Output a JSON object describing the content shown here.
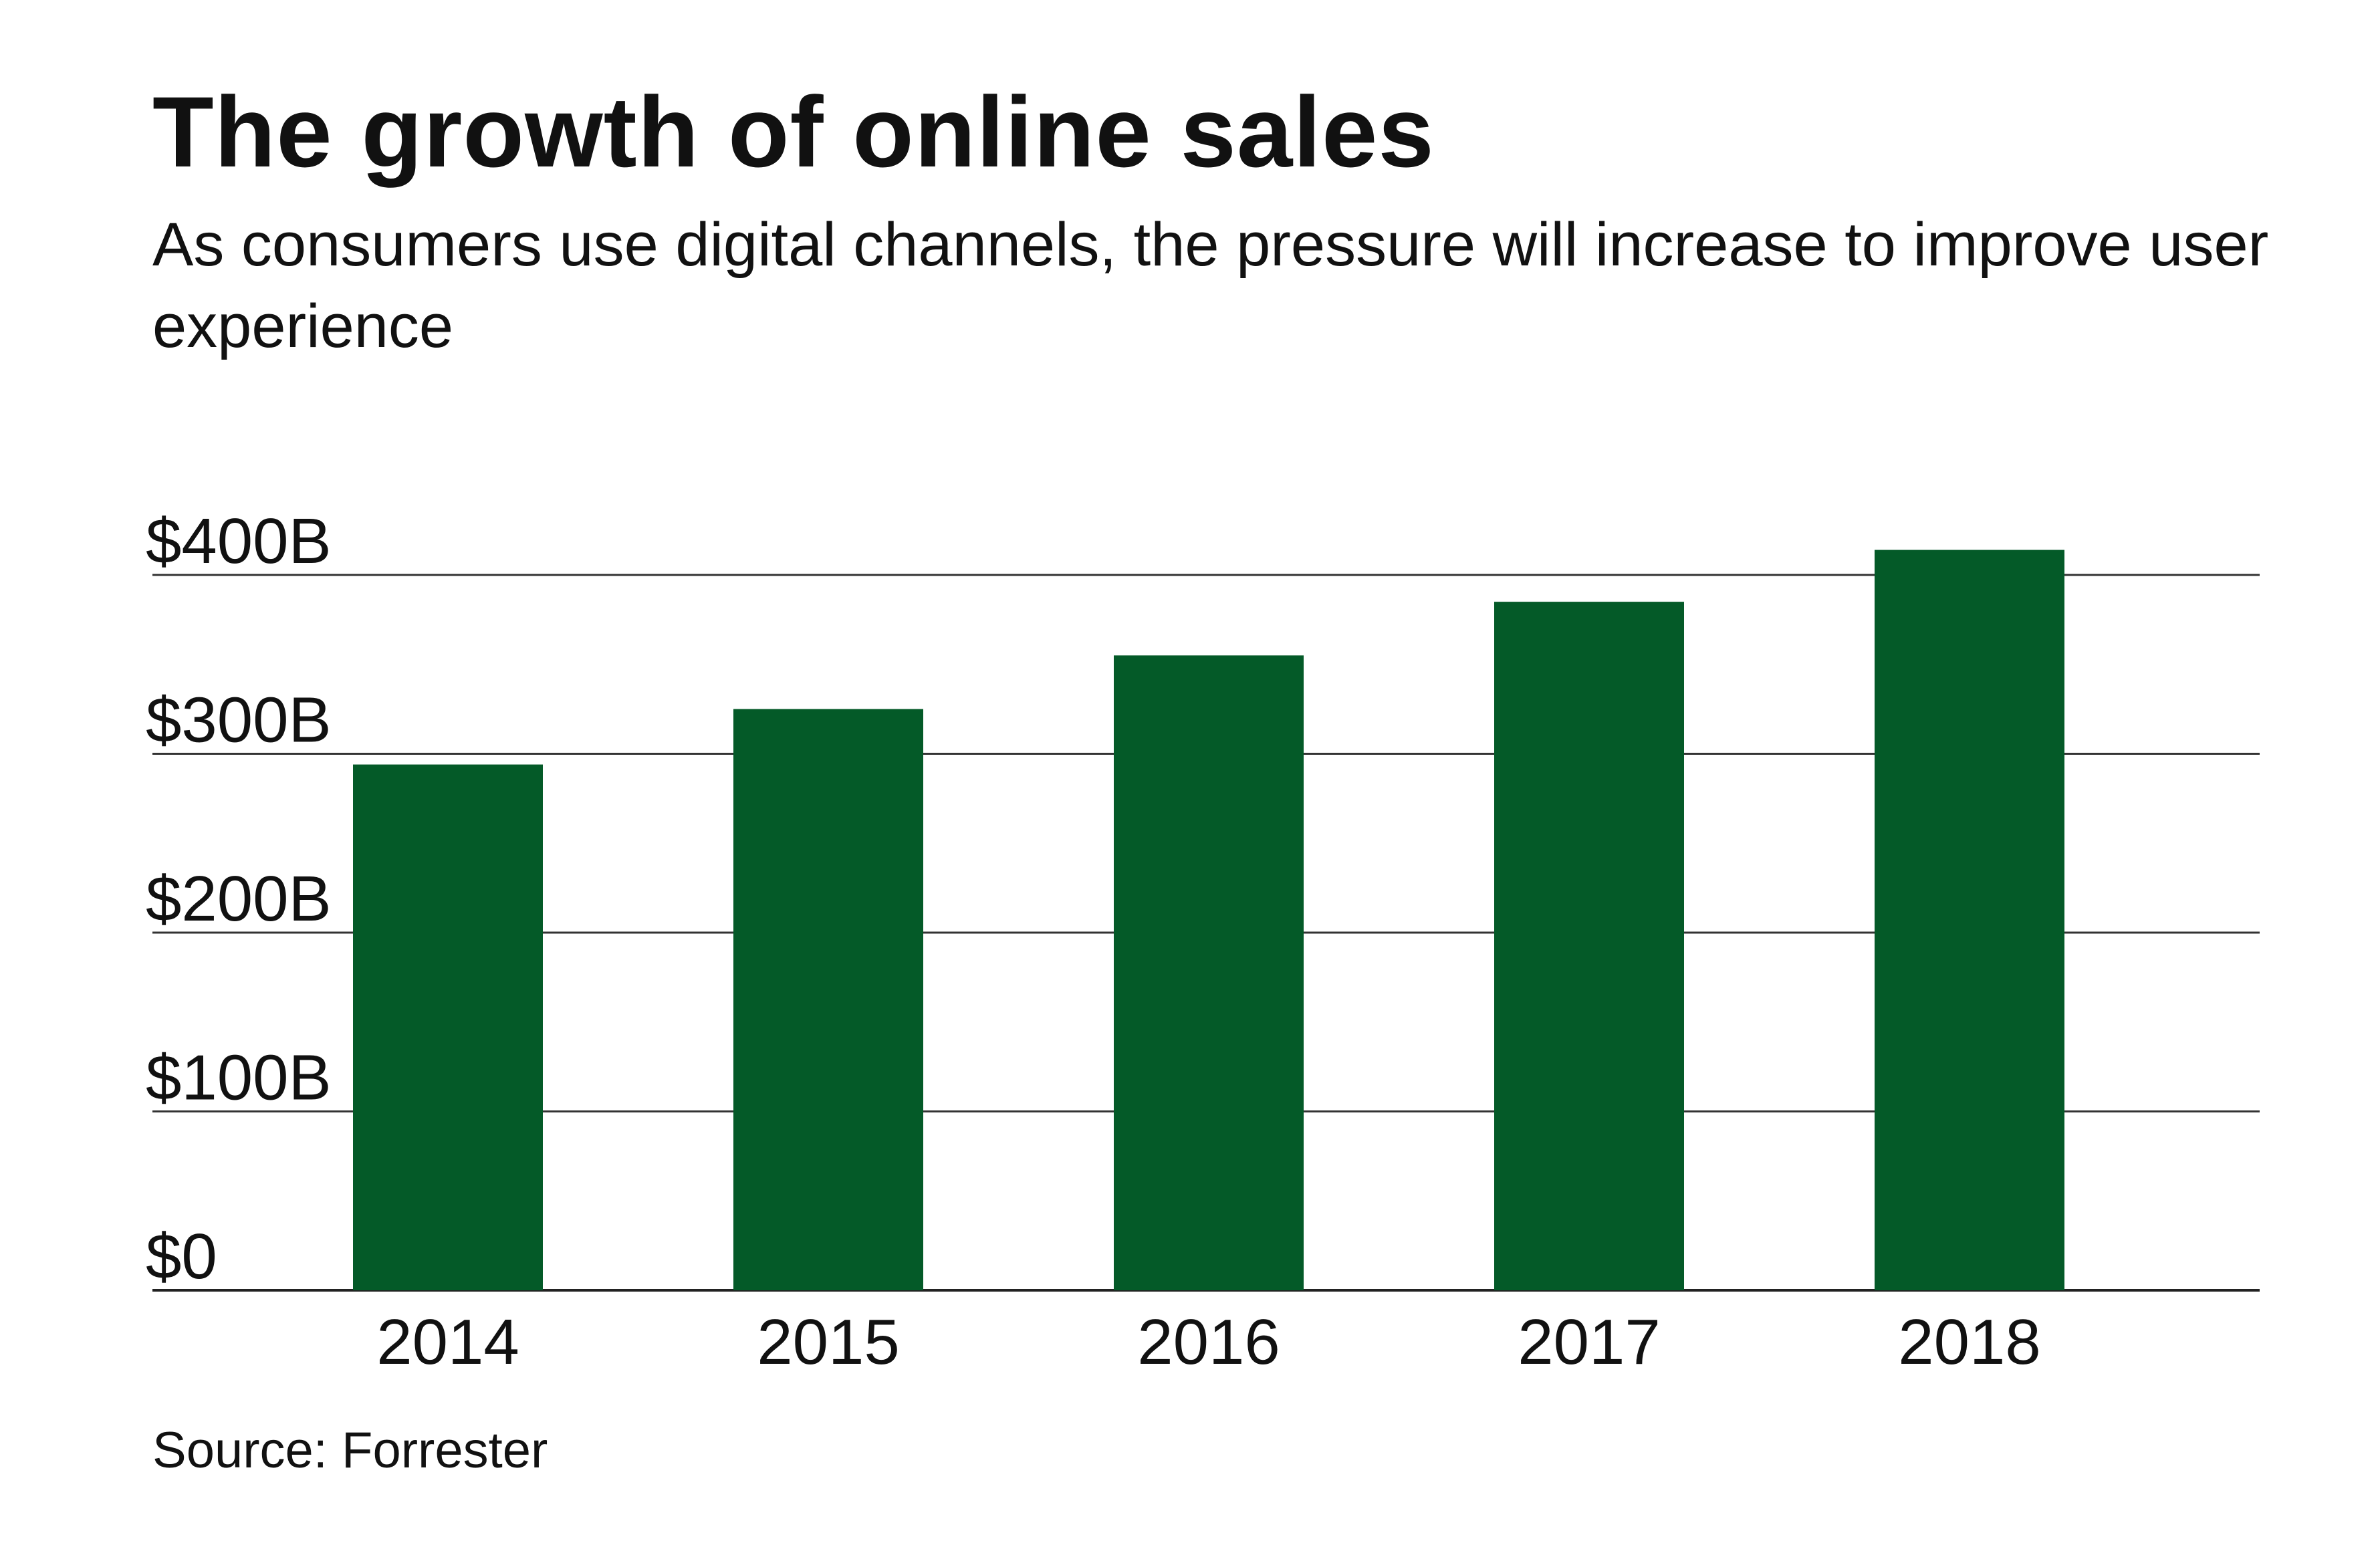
{
  "chart_data": {
    "type": "bar",
    "title": "The growth of online sales",
    "subtitle": "As consumers use digital channels, the pressure will increase to improve user experience",
    "categories": [
      "2014",
      "2015",
      "2016",
      "2017",
      "2018"
    ],
    "values": [
      294,
      325,
      355,
      385,
      414
    ],
    "y_ticks": [
      0,
      100,
      200,
      300,
      400
    ],
    "y_tick_labels": [
      "$0",
      "$100B",
      "$200B",
      "$300B",
      "$400B"
    ],
    "ylim": [
      0,
      400
    ],
    "xlabel": "",
    "ylabel": "",
    "grid": true,
    "legend": "none",
    "bar_color": "#045a28",
    "source": "Source: Forrester"
  }
}
